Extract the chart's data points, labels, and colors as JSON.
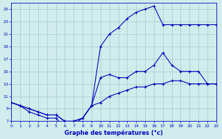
{
  "title": "Graphe des températures (°c)",
  "bg_color": "#d0ecec",
  "grid_color": "#a8d0d0",
  "line_color": "#0000bb",
  "xlim": [
    0,
    23
  ],
  "ylim": [
    7,
    26
  ],
  "xtick_labels": [
    "0",
    "1",
    "2",
    "3",
    "4",
    "5",
    "6",
    "7",
    "8",
    "9",
    "10",
    "11",
    "12",
    "13",
    "14",
    "15",
    "16",
    "17",
    "18",
    "19",
    "20",
    "21",
    "22",
    "23"
  ],
  "ytick_labels": [
    "7",
    "9",
    "11",
    "13",
    "15",
    "17",
    "19",
    "21",
    "23",
    "25"
  ],
  "yticks": [
    7,
    9,
    11,
    13,
    15,
    17,
    19,
    21,
    23,
    25
  ],
  "curve_max_x": [
    0,
    1,
    2,
    3,
    4,
    5,
    6,
    7,
    8,
    9,
    10,
    11,
    12,
    13,
    14,
    15,
    16,
    17,
    18,
    19,
    20,
    21,
    22,
    23
  ],
  "curve_max_y": [
    10,
    9.5,
    9,
    8.5,
    8,
    8,
    7,
    7,
    7.5,
    9.5,
    19,
    21,
    22,
    23.5,
    24.5,
    25,
    25.5,
    22.5,
    22.5,
    22.5,
    22.5,
    22.5,
    22.5,
    22.5
  ],
  "curve_mid_x": [
    0,
    1,
    2,
    3,
    4,
    5,
    6,
    7,
    8,
    9,
    10,
    11,
    12,
    13,
    14,
    15,
    16,
    17,
    18,
    19,
    20,
    21,
    22,
    23
  ],
  "curve_mid_y": [
    10,
    9.5,
    8.5,
    8,
    7.5,
    7.5,
    6,
    6.5,
    7.5,
    9.5,
    14,
    14.5,
    14,
    14,
    15,
    15,
    16,
    18,
    16,
    15,
    15,
    15,
    13,
    13
  ],
  "curve_min_x": [
    0,
    1,
    2,
    3,
    4,
    5,
    6,
    7,
    8,
    9,
    10,
    11,
    12,
    13,
    14,
    15,
    16,
    17,
    18,
    19,
    20,
    21,
    22,
    23
  ],
  "curve_min_y": [
    10,
    9.5,
    9,
    8.5,
    8,
    8,
    7,
    7,
    7.5,
    9.5,
    10,
    11,
    11.5,
    12,
    12.5,
    12.5,
    13,
    13,
    13.5,
    13.5,
    13,
    13,
    13,
    13
  ]
}
